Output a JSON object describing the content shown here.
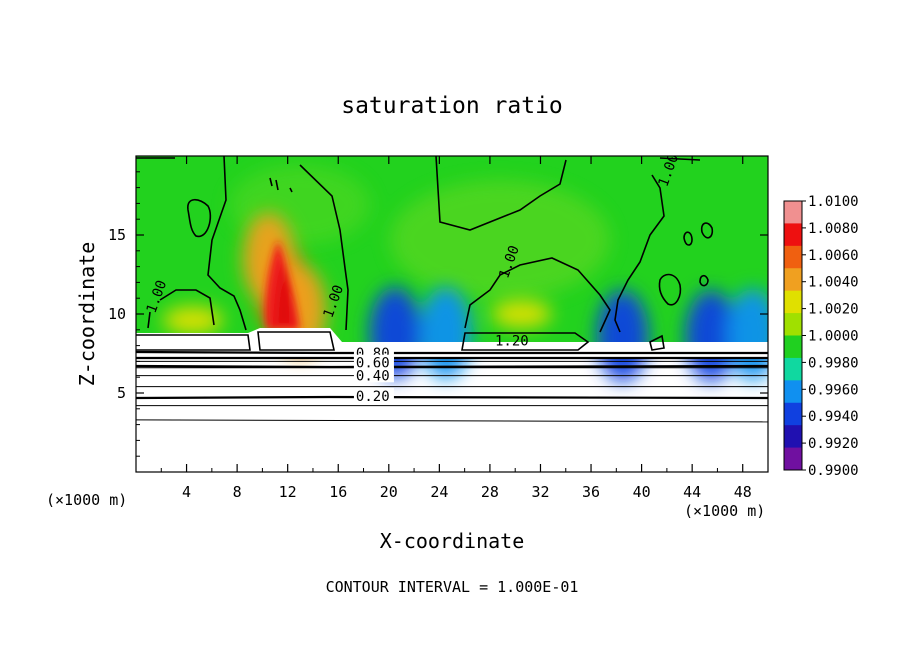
{
  "chart_data": {
    "type": "heatmap",
    "title": "saturation ratio",
    "xlabel": "X-coordinate",
    "ylabel": "Z-coordinate",
    "x_unit_left": "(×1000 m)",
    "x_unit_right": "(×1000 m)",
    "footer": "CONTOUR INTERVAL = 1.000E-01",
    "xlim": [
      0,
      50
    ],
    "ylim": [
      0,
      20
    ],
    "x_ticks": [
      4,
      8,
      12,
      16,
      20,
      24,
      28,
      32,
      36,
      40,
      44,
      48
    ],
    "y_ticks": [
      5,
      10,
      15
    ],
    "colorbar": {
      "ticks": [
        "1.0100",
        "1.0080",
        "1.0060",
        "1.0040",
        "1.0020",
        "1.0000",
        "0.9980",
        "0.9960",
        "0.9940",
        "0.9920",
        "0.9900"
      ],
      "colors": [
        "#f09090",
        "#ee1010",
        "#f06010",
        "#f0a020",
        "#e0e000",
        "#a0e000",
        "#20d020",
        "#10d8a0",
        "#1090f0",
        "#1040e0",
        "#2010b0",
        "#7010a0"
      ]
    },
    "cloud_base_z": 9.0,
    "contour_levels_below_cloud": [
      0.2,
      0.3,
      0.4,
      0.5,
      0.6,
      0.7,
      0.8,
      0.9
    ],
    "contour_labels": [
      {
        "text": "1.00",
        "x": 1.5,
        "z": 10.0
      },
      {
        "text": "1.00",
        "x": 15.5,
        "z": 9.7
      },
      {
        "text": "1.00",
        "x": 29.4,
        "z": 12.2
      },
      {
        "text": "1.00",
        "x": 42.0,
        "z": 18.0
      },
      {
        "text": "1.20",
        "x": 28.4,
        "z": 8.0
      },
      {
        "text": "0.80",
        "x": 17.4,
        "z": 7.2
      },
      {
        "text": "0.60",
        "x": 17.4,
        "z": 6.6
      },
      {
        "text": "0.40",
        "x": 17.4,
        "z": 5.8
      },
      {
        "text": "0.20",
        "x": 17.4,
        "z": 4.5
      }
    ],
    "hotspots": [
      {
        "x": 11.6,
        "z": 11.5,
        "value": 1.0072
      },
      {
        "x": 10.5,
        "z": 13.5,
        "value": 1.0045
      },
      {
        "x": 13.0,
        "z": 10.2,
        "value": 1.004
      },
      {
        "x": 30.5,
        "z": 10.0,
        "value": 1.0035
      },
      {
        "x": 4.5,
        "z": 9.6,
        "value": 1.0025
      },
      {
        "x": 20.5,
        "z": 8.8,
        "value": 0.9945
      },
      {
        "x": 24.5,
        "z": 8.8,
        "value": 0.9952
      },
      {
        "x": 38.5,
        "z": 8.6,
        "value": 0.993
      },
      {
        "x": 45.5,
        "z": 8.6,
        "value": 0.9928
      },
      {
        "x": 48.8,
        "z": 8.7,
        "value": 0.995
      }
    ]
  }
}
